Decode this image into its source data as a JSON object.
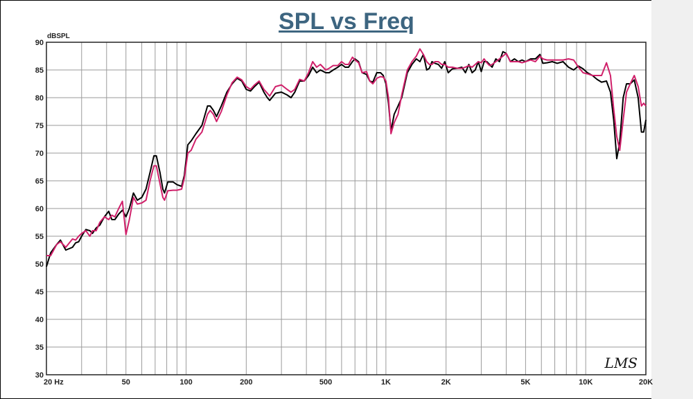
{
  "chart_data": {
    "type": "line",
    "title": "SPL vs Freq",
    "ylabel": "dBSPL",
    "xlabel": "",
    "xscale": "log",
    "xlim": [
      20,
      20000
    ],
    "ylim": [
      30,
      90
    ],
    "grid": true,
    "x_tick_labels": [
      {
        "value": 20,
        "label": "20  Hz"
      },
      {
        "value": 50,
        "label": "50"
      },
      {
        "value": 100,
        "label": "100"
      },
      {
        "value": 200,
        "label": "200"
      },
      {
        "value": 500,
        "label": "500"
      },
      {
        "value": 1000,
        "label": "1K"
      },
      {
        "value": 2000,
        "label": "2K"
      },
      {
        "value": 5000,
        "label": "5K"
      },
      {
        "value": 10000,
        "label": "10K"
      },
      {
        "value": 20000,
        "label": "20K"
      }
    ],
    "y_ticks": [
      30,
      35,
      40,
      45,
      50,
      55,
      60,
      65,
      70,
      75,
      80,
      85,
      90
    ],
    "logo_text": "LMS",
    "series": [
      {
        "color": "#000000",
        "points": [
          [
            20,
            49.5
          ],
          [
            21,
            52
          ],
          [
            22.5,
            53.5
          ],
          [
            23.5,
            54.3
          ],
          [
            25,
            52.5
          ],
          [
            27,
            53
          ],
          [
            28,
            53.8
          ],
          [
            29,
            54
          ],
          [
            30,
            55
          ],
          [
            31.5,
            56.2
          ],
          [
            33,
            56
          ],
          [
            34,
            55.5
          ],
          [
            35.5,
            56.5
          ],
          [
            37,
            57
          ],
          [
            39,
            58.5
          ],
          [
            41,
            59.5
          ],
          [
            42.5,
            58
          ],
          [
            44,
            58
          ],
          [
            46,
            59
          ],
          [
            48,
            59.7
          ],
          [
            50,
            58.5
          ],
          [
            52,
            60
          ],
          [
            54.5,
            62.8
          ],
          [
            57,
            61.5
          ],
          [
            60,
            62
          ],
          [
            63,
            63.5
          ],
          [
            66,
            66.5
          ],
          [
            69,
            69.5
          ],
          [
            71,
            69.5
          ],
          [
            74,
            66.5
          ],
          [
            76.5,
            63.5
          ],
          [
            78,
            62.8
          ],
          [
            81,
            64.8
          ],
          [
            86,
            64.8
          ],
          [
            90,
            64.3
          ],
          [
            95,
            64
          ],
          [
            98,
            66
          ],
          [
            102,
            71.5
          ],
          [
            106,
            72.2
          ],
          [
            112,
            73.5
          ],
          [
            120,
            75
          ],
          [
            128,
            78.5
          ],
          [
            132,
            78.5
          ],
          [
            137,
            77.7
          ],
          [
            142,
            76.6
          ],
          [
            150,
            78.5
          ],
          [
            160,
            81
          ],
          [
            170,
            82.5
          ],
          [
            180,
            83.5
          ],
          [
            190,
            83
          ],
          [
            200,
            81.5
          ],
          [
            210,
            81.2
          ],
          [
            220,
            82
          ],
          [
            232,
            82.8
          ],
          [
            245,
            81
          ],
          [
            255,
            80
          ],
          [
            262,
            79.5
          ],
          [
            280,
            80.8
          ],
          [
            300,
            81
          ],
          [
            320,
            80.5
          ],
          [
            335,
            80
          ],
          [
            350,
            81
          ],
          [
            370,
            83
          ],
          [
            390,
            83
          ],
          [
            410,
            84
          ],
          [
            430,
            85.5
          ],
          [
            450,
            84.5
          ],
          [
            470,
            85
          ],
          [
            500,
            84.5
          ],
          [
            520,
            84.5
          ],
          [
            545,
            85
          ],
          [
            575,
            85.5
          ],
          [
            600,
            86
          ],
          [
            625,
            85.5
          ],
          [
            650,
            85.5
          ],
          [
            680,
            86.5
          ],
          [
            700,
            87
          ],
          [
            730,
            86.5
          ],
          [
            760,
            84.5
          ],
          [
            800,
            84.2
          ],
          [
            830,
            83
          ],
          [
            860,
            82.8
          ],
          [
            900,
            84.5
          ],
          [
            940,
            84.5
          ],
          [
            970,
            84
          ],
          [
            1000,
            82.5
          ],
          [
            1030,
            79
          ],
          [
            1060,
            74
          ],
          [
            1100,
            77
          ],
          [
            1150,
            78.5
          ],
          [
            1200,
            80
          ],
          [
            1280,
            84.5
          ],
          [
            1350,
            86
          ],
          [
            1420,
            87
          ],
          [
            1480,
            86.5
          ],
          [
            1540,
            87.8
          ],
          [
            1600,
            85
          ],
          [
            1650,
            85.3
          ],
          [
            1700,
            86.5
          ],
          [
            1760,
            86.2
          ],
          [
            1830,
            86
          ],
          [
            1900,
            85.3
          ],
          [
            1970,
            86.5
          ],
          [
            2050,
            84.5
          ],
          [
            2150,
            85.2
          ],
          [
            2280,
            85.3
          ],
          [
            2400,
            85.5
          ],
          [
            2500,
            84.5
          ],
          [
            2600,
            86
          ],
          [
            2700,
            84.5
          ],
          [
            2800,
            85
          ],
          [
            2900,
            86.5
          ],
          [
            3000,
            84.7
          ],
          [
            3100,
            86.5
          ],
          [
            3200,
            86.5
          ],
          [
            3300,
            86
          ],
          [
            3400,
            85.5
          ],
          [
            3550,
            87
          ],
          [
            3700,
            86.5
          ],
          [
            3850,
            88.3
          ],
          [
            4000,
            88
          ],
          [
            4200,
            86.5
          ],
          [
            4400,
            87
          ],
          [
            4600,
            86.5
          ],
          [
            4800,
            86.8
          ],
          [
            5000,
            86.5
          ],
          [
            5300,
            87
          ],
          [
            5600,
            87
          ],
          [
            5900,
            87.8
          ],
          [
            6100,
            86.2
          ],
          [
            6400,
            86.3
          ],
          [
            6800,
            86.5
          ],
          [
            7200,
            86.2
          ],
          [
            7700,
            86.5
          ],
          [
            8200,
            85.5
          ],
          [
            8700,
            85
          ],
          [
            9200,
            85.7
          ],
          [
            9700,
            85.2
          ],
          [
            10200,
            84.5
          ],
          [
            10800,
            84
          ],
          [
            11400,
            83.3
          ],
          [
            12000,
            82.8
          ],
          [
            12700,
            83
          ],
          [
            13300,
            81
          ],
          [
            13800,
            76
          ],
          [
            14300,
            69
          ],
          [
            14800,
            72
          ],
          [
            15400,
            80
          ],
          [
            16000,
            82.5
          ],
          [
            16700,
            82.5
          ],
          [
            17500,
            83.2
          ],
          [
            18300,
            80
          ],
          [
            19000,
            73.8
          ],
          [
            19500,
            73.8
          ],
          [
            20000,
            76
          ]
        ]
      },
      {
        "color": "#d0206a",
        "points": [
          [
            20,
            51.5
          ],
          [
            21,
            51.5
          ],
          [
            22.5,
            53.5
          ],
          [
            23.5,
            54
          ],
          [
            25,
            53
          ],
          [
            27,
            54.5
          ],
          [
            28,
            54.3
          ],
          [
            29,
            55
          ],
          [
            30,
            55.5
          ],
          [
            31.5,
            56
          ],
          [
            33,
            55
          ],
          [
            34,
            56
          ],
          [
            35.5,
            56
          ],
          [
            37,
            57.5
          ],
          [
            39,
            58.5
          ],
          [
            41,
            58
          ],
          [
            42.5,
            58.8
          ],
          [
            44,
            58.5
          ],
          [
            46,
            60
          ],
          [
            48,
            61.3
          ],
          [
            50,
            55.3
          ],
          [
            52,
            58
          ],
          [
            54.5,
            62
          ],
          [
            57,
            60.8
          ],
          [
            60,
            61
          ],
          [
            63,
            61.5
          ],
          [
            66,
            65
          ],
          [
            69,
            67.7
          ],
          [
            71,
            67.7
          ],
          [
            74,
            64.5
          ],
          [
            76.5,
            62
          ],
          [
            78,
            61.5
          ],
          [
            81,
            63.2
          ],
          [
            86,
            63.3
          ],
          [
            90,
            63.3
          ],
          [
            95,
            63.5
          ],
          [
            98,
            65.5
          ],
          [
            102,
            70
          ],
          [
            106,
            70.5
          ],
          [
            112,
            72.5
          ],
          [
            120,
            73.8
          ],
          [
            128,
            77
          ],
          [
            132,
            77.7
          ],
          [
            137,
            77
          ],
          [
            142,
            75.7
          ],
          [
            150,
            77.5
          ],
          [
            160,
            80.5
          ],
          [
            170,
            82.7
          ],
          [
            180,
            83.7
          ],
          [
            190,
            83.2
          ],
          [
            200,
            82
          ],
          [
            210,
            81.5
          ],
          [
            220,
            82.3
          ],
          [
            232,
            83
          ],
          [
            245,
            81.5
          ],
          [
            255,
            80.8
          ],
          [
            262,
            80.3
          ],
          [
            280,
            82
          ],
          [
            300,
            82.3
          ],
          [
            320,
            81.5
          ],
          [
            335,
            81
          ],
          [
            350,
            81.5
          ],
          [
            370,
            83.3
          ],
          [
            390,
            83
          ],
          [
            410,
            84.5
          ],
          [
            430,
            86.5
          ],
          [
            450,
            85.5
          ],
          [
            470,
            86
          ],
          [
            500,
            85
          ],
          [
            520,
            85.3
          ],
          [
            545,
            85.8
          ],
          [
            575,
            85.8
          ],
          [
            600,
            86.5
          ],
          [
            625,
            86
          ],
          [
            650,
            86
          ],
          [
            680,
            87.3
          ],
          [
            700,
            86.8
          ],
          [
            730,
            86.3
          ],
          [
            760,
            84.5
          ],
          [
            800,
            84.7
          ],
          [
            830,
            83
          ],
          [
            860,
            82.5
          ],
          [
            900,
            83.5
          ],
          [
            940,
            83.8
          ],
          [
            970,
            83.7
          ],
          [
            1000,
            83
          ],
          [
            1030,
            80
          ],
          [
            1060,
            73.5
          ],
          [
            1100,
            75.5
          ],
          [
            1150,
            77
          ],
          [
            1200,
            80.5
          ],
          [
            1280,
            85
          ],
          [
            1350,
            86.5
          ],
          [
            1420,
            87.5
          ],
          [
            1480,
            88.8
          ],
          [
            1540,
            87.8
          ],
          [
            1600,
            86.5
          ],
          [
            1650,
            86
          ],
          [
            1700,
            86
          ],
          [
            1760,
            86.5
          ],
          [
            1830,
            86.5
          ],
          [
            1900,
            86
          ],
          [
            1970,
            86
          ],
          [
            2050,
            85.5
          ],
          [
            2150,
            85.5
          ],
          [
            2280,
            85.3
          ],
          [
            2400,
            85.3
          ],
          [
            2500,
            85.5
          ],
          [
            2600,
            85.8
          ],
          [
            2700,
            85.5
          ],
          [
            2800,
            86
          ],
          [
            2900,
            86.5
          ],
          [
            3000,
            86.3
          ],
          [
            3100,
            87
          ],
          [
            3200,
            86.3
          ],
          [
            3300,
            85.8
          ],
          [
            3400,
            86
          ],
          [
            3550,
            86.5
          ],
          [
            3700,
            87
          ],
          [
            3850,
            87.5
          ],
          [
            4000,
            88
          ],
          [
            4200,
            86.5
          ],
          [
            4400,
            86.5
          ],
          [
            4600,
            86.5
          ],
          [
            4800,
            86.3
          ],
          [
            5000,
            86.5
          ],
          [
            5300,
            86.8
          ],
          [
            5600,
            86.5
          ],
          [
            5900,
            87.5
          ],
          [
            6100,
            87
          ],
          [
            6400,
            86.8
          ],
          [
            6800,
            86.8
          ],
          [
            7200,
            86.8
          ],
          [
            7700,
            86.8
          ],
          [
            8200,
            87
          ],
          [
            8700,
            86.8
          ],
          [
            9200,
            85.5
          ],
          [
            9700,
            84.5
          ],
          [
            10200,
            84.3
          ],
          [
            10800,
            84
          ],
          [
            11400,
            84
          ],
          [
            12000,
            84
          ],
          [
            12700,
            86.3
          ],
          [
            13300,
            84
          ],
          [
            13800,
            78
          ],
          [
            14300,
            73
          ],
          [
            14800,
            70.5
          ],
          [
            15400,
            76
          ],
          [
            16000,
            81
          ],
          [
            16700,
            82.5
          ],
          [
            17500,
            84
          ],
          [
            18300,
            82
          ],
          [
            19000,
            78.5
          ],
          [
            19500,
            79
          ],
          [
            20000,
            78.5
          ]
        ]
      }
    ]
  }
}
